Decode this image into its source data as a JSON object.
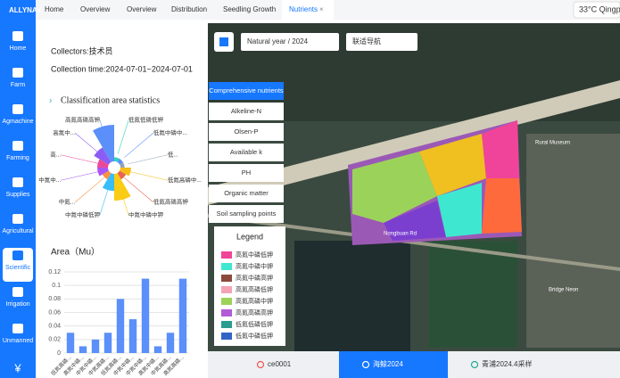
{
  "sidebar": {
    "logo": "ALLYNAV",
    "items": [
      "Home",
      "Farm",
      "Agmachine",
      "Farming",
      "Supplies",
      "Agricultural",
      "Scientific",
      "Irrigation",
      "Unmanned"
    ],
    "bottom_icon": "¥"
  },
  "tabs": [
    "Home",
    "Overview",
    "Overview",
    "Distribution",
    "Seedling Growth",
    "Nutrients"
  ],
  "tab_close": "×",
  "weather": "33°C Qingp...",
  "info": {
    "collectors": "Collectors:技术员",
    "collection_time": "Collection time:2024-07-01~2024-07-01"
  },
  "classification": {
    "type": "rose",
    "title": "Classification area statistics",
    "categories": [
      "低氮低磷低钾",
      "低氮中磷中...",
      "低...",
      "低氮高磷中...",
      "低氮高磷高钾",
      "中氮中磷中钾",
      "中氮中磷低钾",
      "中氮...",
      "中氮中...",
      "高...",
      "高氮中...",
      "高氮高磷高钾"
    ],
    "values": [
      0.01,
      0.01,
      0.01,
      0.03,
      0.02,
      0.08,
      0.05,
      0.02,
      0.03,
      0.03,
      0.05,
      0.11
    ],
    "colors": [
      "#2dd4bf",
      "#5b8ff9",
      "#94a3b8",
      "#f6bd16",
      "#e86452",
      "#facc15",
      "#38bdf8",
      "#fb923c",
      "#a855f7",
      "#ec4899",
      "#8b5cf6",
      "#5b8ff9"
    ]
  },
  "area_chart": {
    "type": "bar",
    "title": "Area（Mu）",
    "categories": [
      "低氮高磷...",
      "高氮中磷...",
      "中氮中磷...",
      "中氮高磷...",
      "低氮高磷...",
      "中氮中磷...",
      "中氮中磷...",
      "高氮中磷...",
      "中氮高磷...",
      "高氮高磷..."
    ],
    "values": [
      0.03,
      0.01,
      0.02,
      0.03,
      0.08,
      0.05,
      0.11,
      0.01,
      0.03,
      0.11
    ],
    "color": "#5b8ff9",
    "ylim": [
      0,
      0.12
    ],
    "yticks": [
      0,
      0.02,
      0.04,
      0.06,
      0.08,
      0.1,
      0.12
    ]
  },
  "map": {
    "year_select": "Natural year / 2024",
    "org_select": "联适导航",
    "menu": [
      "Comprehensive nutrients",
      "Alkeline-N",
      "Olsen-P",
      "Available k",
      "PH",
      "Organic matter",
      "Soil sampling points"
    ],
    "legend": {
      "title": "Legend",
      "items": [
        {
          "name": "高氮中磷低钾",
          "color": "#f0449a"
        },
        {
          "name": "高氮中磷中钾",
          "color": "#3ee8d0"
        },
        {
          "name": "高氮中磷高钾",
          "color": "#8b4a3c"
        },
        {
          "name": "高氮高磷低钾",
          "color": "#f4a3b5"
        },
        {
          "name": "高氮高磷中钾",
          "color": "#9bd35a"
        },
        {
          "name": "高氮高磷高钾",
          "color": "#b25ad8"
        },
        {
          "name": "低氮低磷低钾",
          "color": "#2a9d8f"
        },
        {
          "name": "低氮中磷低钾",
          "color": "#3264c8"
        }
      ]
    },
    "labels": [
      "Rural Museum",
      "Nongbuan Rd",
      "Bridge Neon"
    ],
    "bottom_tabs": [
      "ce0001",
      "海鲸2024",
      "青浦2024.4采样"
    ]
  }
}
